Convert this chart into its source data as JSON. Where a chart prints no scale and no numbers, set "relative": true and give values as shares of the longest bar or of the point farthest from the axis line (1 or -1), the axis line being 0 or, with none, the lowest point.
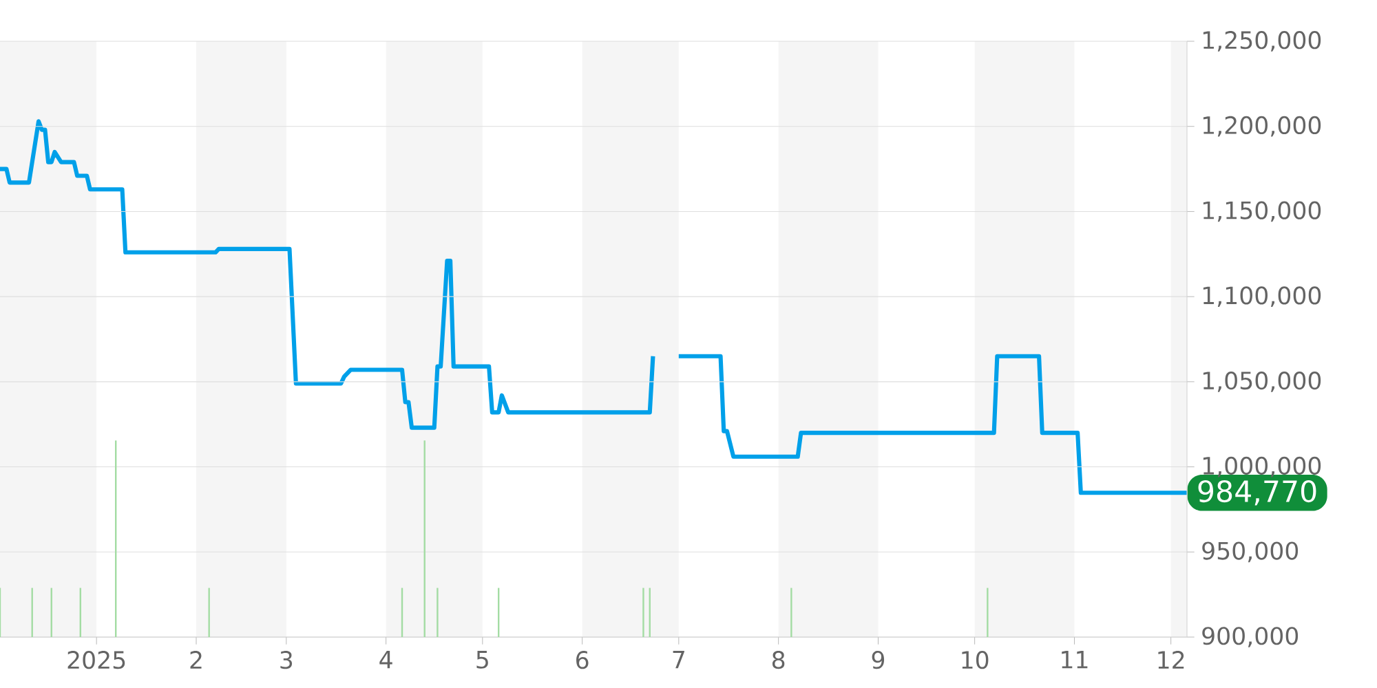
{
  "chart_data": [
    {
      "type": "line",
      "color": "#00a0e9",
      "x": [
        "2024-12-02",
        "2024-12-04",
        "2024-12-05",
        "2024-12-11",
        "2024-12-14",
        "2024-12-15",
        "2024-12-16",
        "2024-12-17",
        "2024-12-18",
        "2024-12-19",
        "2024-12-21",
        "2024-12-25",
        "2024-12-26",
        "2024-12-29",
        "2024-12-30",
        "2025-01-09",
        "2025-01-10",
        "2025-02-07",
        "2025-02-08",
        "2025-03-02",
        "2025-03-04",
        "2025-03-18",
        "2025-03-19",
        "2025-03-21",
        "2025-04-06",
        "2025-04-07",
        "2025-04-08",
        "2025-04-09",
        "2025-04-16",
        "2025-04-17",
        "2025-04-18",
        "2025-04-20",
        "2025-04-21",
        "2025-04-22",
        "2025-05-03",
        "2025-05-04",
        "2025-05-06",
        "2025-05-07",
        "2025-05-09",
        "2025-06-22",
        "2025-06-23",
        "2025-06-27",
        "2025-07-01",
        "2025-07-14",
        "2025-07-15",
        "2025-07-16",
        "2025-07-18",
        "2025-08-07",
        "2025-08-08",
        "2025-10-07",
        "2025-10-08",
        "2025-10-21",
        "2025-10-22",
        "2025-11-02",
        "2025-11-03",
        "2025-12-06"
      ],
      "values": [
        1175000,
        1175000,
        1167000,
        1167000,
        1203000,
        1198000,
        1198000,
        1179000,
        1179000,
        1185000,
        1179000,
        1179000,
        1171000,
        1171000,
        1163000,
        1163000,
        1126000,
        1126000,
        1128000,
        1128000,
        1049000,
        1049000,
        1053000,
        1057000,
        1057000,
        1038000,
        1038000,
        1023000,
        1023000,
        1059000,
        1059000,
        1121000,
        1121000,
        1059000,
        1059000,
        1032000,
        1032000,
        1042000,
        1032000,
        1032000,
        1065000,
        null,
        1065000,
        1065000,
        1021000,
        1021000,
        1006000,
        1006000,
        1020000,
        1020000,
        1065000,
        1065000,
        1020000,
        1020000,
        984770,
        984770
      ],
      "xlim": [
        "2024-12-02",
        "2025-12-06"
      ],
      "ylim": [
        900000,
        1250000
      ],
      "xticks": [
        {
          "value": "2025-01-01",
          "label": "2025"
        },
        {
          "value": "2025-02-01",
          "label": "2"
        },
        {
          "value": "2025-03-01",
          "label": "3"
        },
        {
          "value": "2025-04-01",
          "label": "4"
        },
        {
          "value": "2025-05-01",
          "label": "5"
        },
        {
          "value": "2025-06-01",
          "label": "6"
        },
        {
          "value": "2025-07-01",
          "label": "7"
        },
        {
          "value": "2025-08-01",
          "label": "8"
        },
        {
          "value": "2025-09-01",
          "label": "9"
        },
        {
          "value": "2025-10-01",
          "label": "10"
        },
        {
          "value": "2025-11-01",
          "label": "11"
        },
        {
          "value": "2025-12-01",
          "label": "12"
        }
      ],
      "yticks": [
        {
          "value": 900000,
          "label": "900,000"
        },
        {
          "value": 950000,
          "label": "950,000"
        },
        {
          "value": 1000000,
          "label": "1,000,000"
        },
        {
          "value": 1050000,
          "label": "1,050,000"
        },
        {
          "value": 1100000,
          "label": "1,100,000"
        },
        {
          "value": 1150000,
          "label": "1,150,000"
        },
        {
          "value": 1200000,
          "label": "1,200,000"
        },
        {
          "value": 1250000,
          "label": "1,250,000"
        }
      ],
      "grid": "y",
      "bands": [
        {
          "axis": "x",
          "from": "2024-12-02",
          "to": "2025-01-01",
          "color": "#f5f5f5"
        },
        {
          "axis": "x",
          "from": "2025-02-01",
          "to": "2025-03-01",
          "color": "#f5f5f5"
        },
        {
          "axis": "x",
          "from": "2025-04-01",
          "to": "2025-05-01",
          "color": "#f5f5f5"
        },
        {
          "axis": "x",
          "from": "2025-06-01",
          "to": "2025-07-01",
          "color": "#f5f5f5"
        },
        {
          "axis": "x",
          "from": "2025-08-01",
          "to": "2025-09-01",
          "color": "#f5f5f5"
        },
        {
          "axis": "x",
          "from": "2025-10-01",
          "to": "2025-11-01",
          "color": "#f5f5f5"
        },
        {
          "axis": "x",
          "from": "2025-12-01",
          "to": "2025-12-06",
          "color": "#f5f5f5"
        }
      ],
      "annotations": [
        {
          "text": "984,770",
          "x": "2025-12-06",
          "y": 984770
        }
      ]
    },
    {
      "type": "bar",
      "relative": true,
      "color": "#a3dca3",
      "x": [
        "2024-12-02",
        "2024-12-12",
        "2024-12-18",
        "2024-12-27",
        "2025-01-07",
        "2025-02-05",
        "2025-04-06",
        "2025-04-13",
        "2025-04-17",
        "2025-05-06",
        "2025-06-20",
        "2025-06-22",
        "2025-08-05",
        "2025-10-05"
      ],
      "values": [
        0.25,
        0.25,
        0.25,
        0.25,
        1,
        0.25,
        0.25,
        1,
        0.25,
        0.25,
        0.25,
        0.25,
        0.25,
        0.25
      ],
      "xlim": [
        "2024-12-02",
        "2025-12-06"
      ]
    }
  ]
}
